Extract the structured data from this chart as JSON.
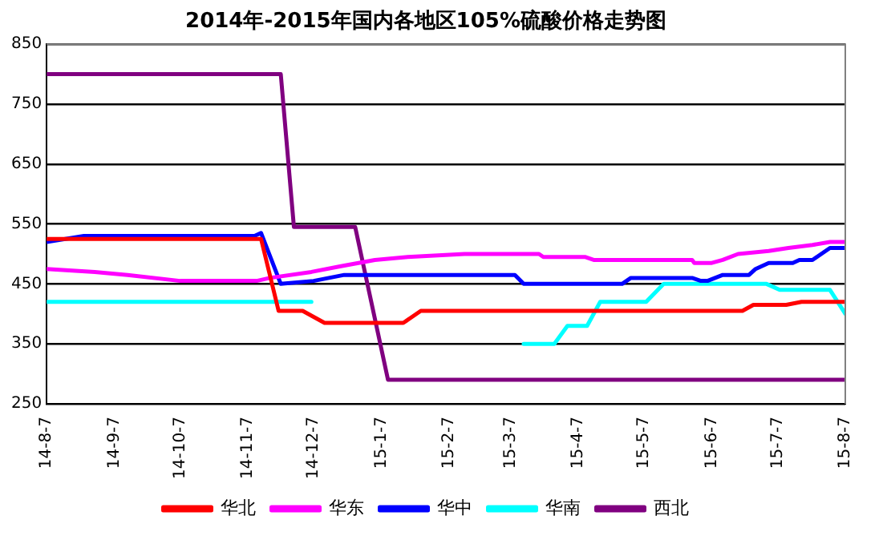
{
  "chart_data": {
    "type": "line",
    "title": "2014年-2015年国内各地区105%硫酸价格走势图",
    "xlim": [
      "2014-08-07",
      "2015-08-07"
    ],
    "xticks": [
      {
        "value": "2014-08-07",
        "label": "14-8-7"
      },
      {
        "value": "2014-09-07",
        "label": "14-9-7"
      },
      {
        "value": "2014-10-07",
        "label": "14-10-7"
      },
      {
        "value": "2014-11-07",
        "label": "14-11-7"
      },
      {
        "value": "2014-12-07",
        "label": "14-12-7"
      },
      {
        "value": "2015-01-07",
        "label": "15-1-7"
      },
      {
        "value": "2015-02-07",
        "label": "15-2-7"
      },
      {
        "value": "2015-03-07",
        "label": "15-3-7"
      },
      {
        "value": "2015-04-07",
        "label": "15-4-7"
      },
      {
        "value": "2015-05-07",
        "label": "15-5-7"
      },
      {
        "value": "2015-06-07",
        "label": "15-6-7"
      },
      {
        "value": "2015-07-07",
        "label": "15-7-7"
      },
      {
        "value": "2015-08-07",
        "label": "15-8-7"
      }
    ],
    "ylim": [
      250,
      850
    ],
    "yticks": [
      250,
      350,
      450,
      550,
      650,
      750,
      850
    ],
    "grid": "y",
    "legend": "bottom",
    "marker": "none",
    "line_style": "solid",
    "series": [
      {
        "name": "华北",
        "color": "#ff0000",
        "x": [
          "2014-08-07",
          "2014-11-13",
          "2014-11-21",
          "2014-12-02",
          "2014-12-12",
          "2015-01-17",
          "2015-01-25",
          "2015-06-21",
          "2015-06-26",
          "2015-07-11",
          "2015-07-18",
          "2015-08-07"
        ],
        "values": [
          525,
          525,
          405,
          405,
          385,
          385,
          405,
          405,
          415,
          415,
          420,
          420
        ]
      },
      {
        "name": "华东",
        "color": "#ff00ff",
        "x": [
          "2014-08-07",
          "2014-08-29",
          "2014-09-13",
          "2014-10-07",
          "2014-11-11",
          "2014-11-17",
          "2014-12-06",
          "2014-12-20",
          "2015-01-04",
          "2015-01-19",
          "2015-02-14",
          "2015-03-20",
          "2015-03-22",
          "2015-04-10",
          "2015-04-14",
          "2015-05-29",
          "2015-05-30",
          "2015-06-07",
          "2015-06-12",
          "2015-06-19",
          "2015-07-03",
          "2015-07-12",
          "2015-07-23",
          "2015-07-31",
          "2015-08-07"
        ],
        "values": [
          475,
          470,
          465,
          455,
          455,
          460,
          470,
          480,
          490,
          495,
          500,
          500,
          495,
          495,
          490,
          490,
          485,
          485,
          490,
          500,
          505,
          510,
          515,
          520,
          520
        ]
      },
      {
        "name": "华中",
        "color": "#0000ff",
        "x": [
          "2014-08-07",
          "2014-08-24",
          "2014-11-10",
          "2014-11-13",
          "2014-11-22",
          "2014-12-07",
          "2014-12-21",
          "2015-03-09",
          "2015-03-13",
          "2015-04-27",
          "2015-05-01",
          "2015-05-29",
          "2015-06-02",
          "2015-06-05",
          "2015-06-12",
          "2015-06-24",
          "2015-06-27",
          "2015-07-03",
          "2015-07-14",
          "2015-07-17",
          "2015-07-23",
          "2015-07-31",
          "2015-08-07"
        ],
        "values": [
          520,
          530,
          530,
          535,
          450,
          455,
          465,
          465,
          450,
          450,
          460,
          460,
          455,
          455,
          465,
          465,
          475,
          485,
          485,
          490,
          490,
          510,
          510
        ]
      },
      {
        "name": "华南",
        "color": "#00ffff",
        "x": [
          "2014-08-07",
          "2014-12-06",
          "2015-01-01",
          "2015-03-13",
          "2015-03-27",
          "2015-04-02",
          "2015-04-11",
          "2015-04-17",
          "2015-05-08",
          "2015-05-16",
          "2015-07-02",
          "2015-07-08",
          "2015-07-31",
          "2015-08-07"
        ],
        "values": [
          420,
          420,
          null,
          350,
          350,
          380,
          380,
          420,
          420,
          450,
          450,
          440,
          440,
          400
        ]
      },
      {
        "name": "西北",
        "color": "#800080",
        "x": [
          "2014-08-07",
          "2014-11-22",
          "2014-11-28",
          "2014-12-26",
          "2015-01-10",
          "2015-08-07"
        ],
        "values": [
          800,
          800,
          545,
          545,
          290,
          290
        ]
      }
    ]
  }
}
